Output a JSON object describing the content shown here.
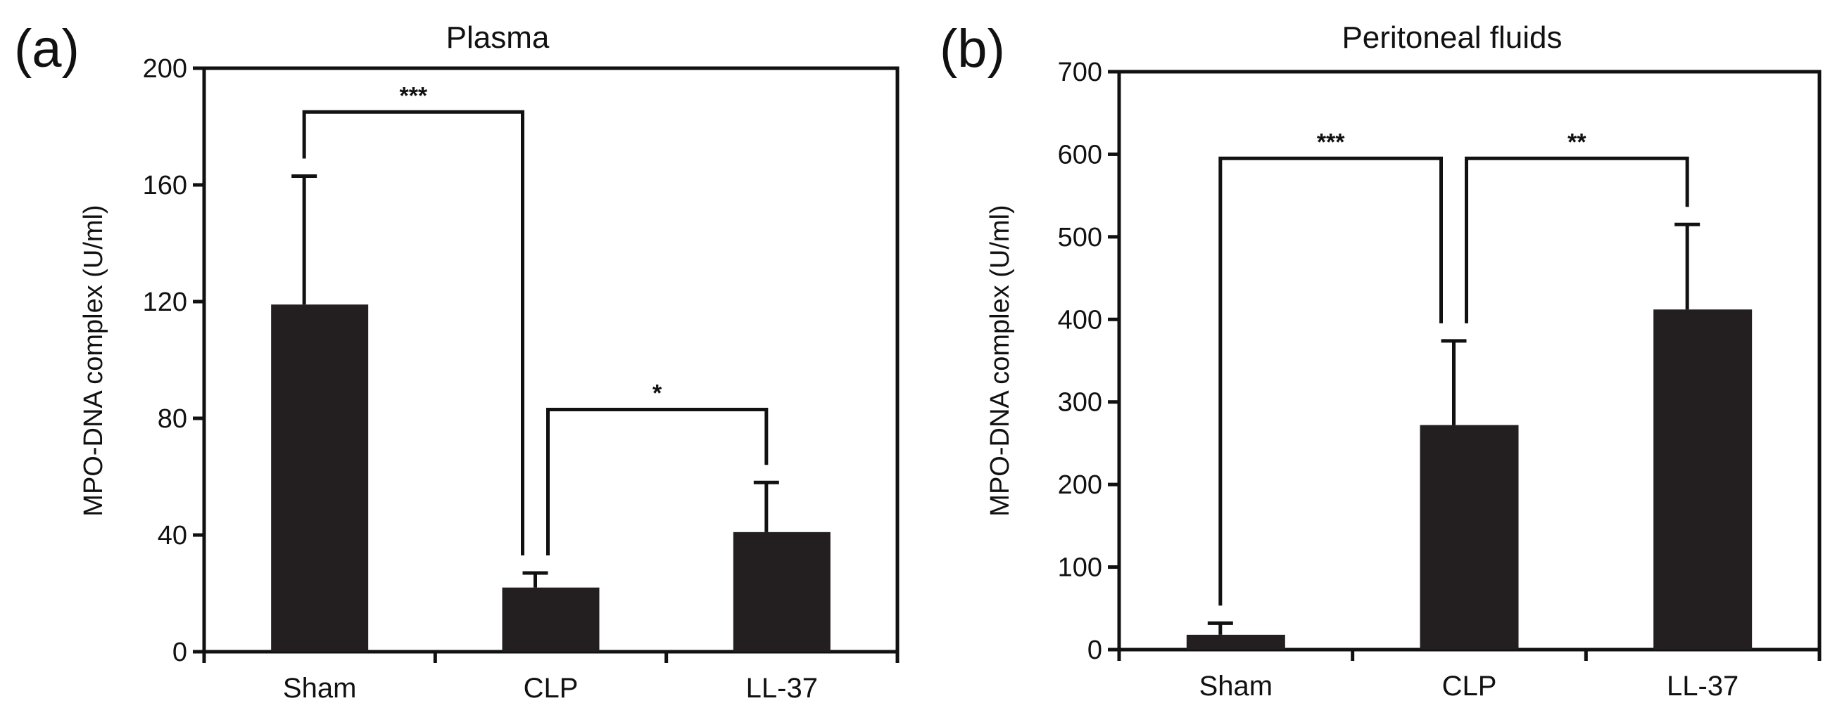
{
  "chart_data": [
    {
      "panel_label": "(a)",
      "type": "bar",
      "title": "Plasma",
      "xlabel": "",
      "ylabel": "MPO-DNA complex (U/ml)",
      "categories": [
        "Sham",
        "CLP",
        "LL-37"
      ],
      "values": [
        119,
        22,
        41
      ],
      "errors": [
        44,
        5,
        17
      ],
      "ylim": [
        0,
        200
      ],
      "yticks": [
        0,
        40,
        80,
        120,
        160,
        200
      ],
      "ytick_labels": [
        "0",
        "40",
        "80",
        "120",
        "160",
        "200"
      ],
      "significance": [
        {
          "from": 0,
          "to": 1,
          "label": "***",
          "bracket_y": 185
        },
        {
          "from": 1,
          "to": 2,
          "label": "*",
          "bracket_y": 83
        }
      ],
      "colors": {
        "bar": "#231f20",
        "axis": "#111111"
      }
    },
    {
      "panel_label": "(b)",
      "type": "bar",
      "title": "Peritoneal fluids",
      "xlabel": "",
      "ylabel": "MPO-DNA complex (U/ml)",
      "categories": [
        "Sham",
        "CLP",
        "LL-37"
      ],
      "values": [
        18,
        272,
        412
      ],
      "errors": [
        14,
        102,
        103
      ],
      "ylim": [
        0,
        700
      ],
      "yticks": [
        0,
        100,
        200,
        300,
        400,
        500,
        600,
        700
      ],
      "ytick_labels": [
        "0",
        "100",
        "200",
        "300",
        "400",
        "500",
        "600",
        "700"
      ],
      "significance": [
        {
          "from": 0,
          "to": 1,
          "label": "***",
          "bracket_y": 595
        },
        {
          "from": 1,
          "to": 2,
          "label": "**",
          "bracket_y": 595
        }
      ],
      "colors": {
        "bar": "#231f20",
        "axis": "#111111"
      }
    }
  ]
}
